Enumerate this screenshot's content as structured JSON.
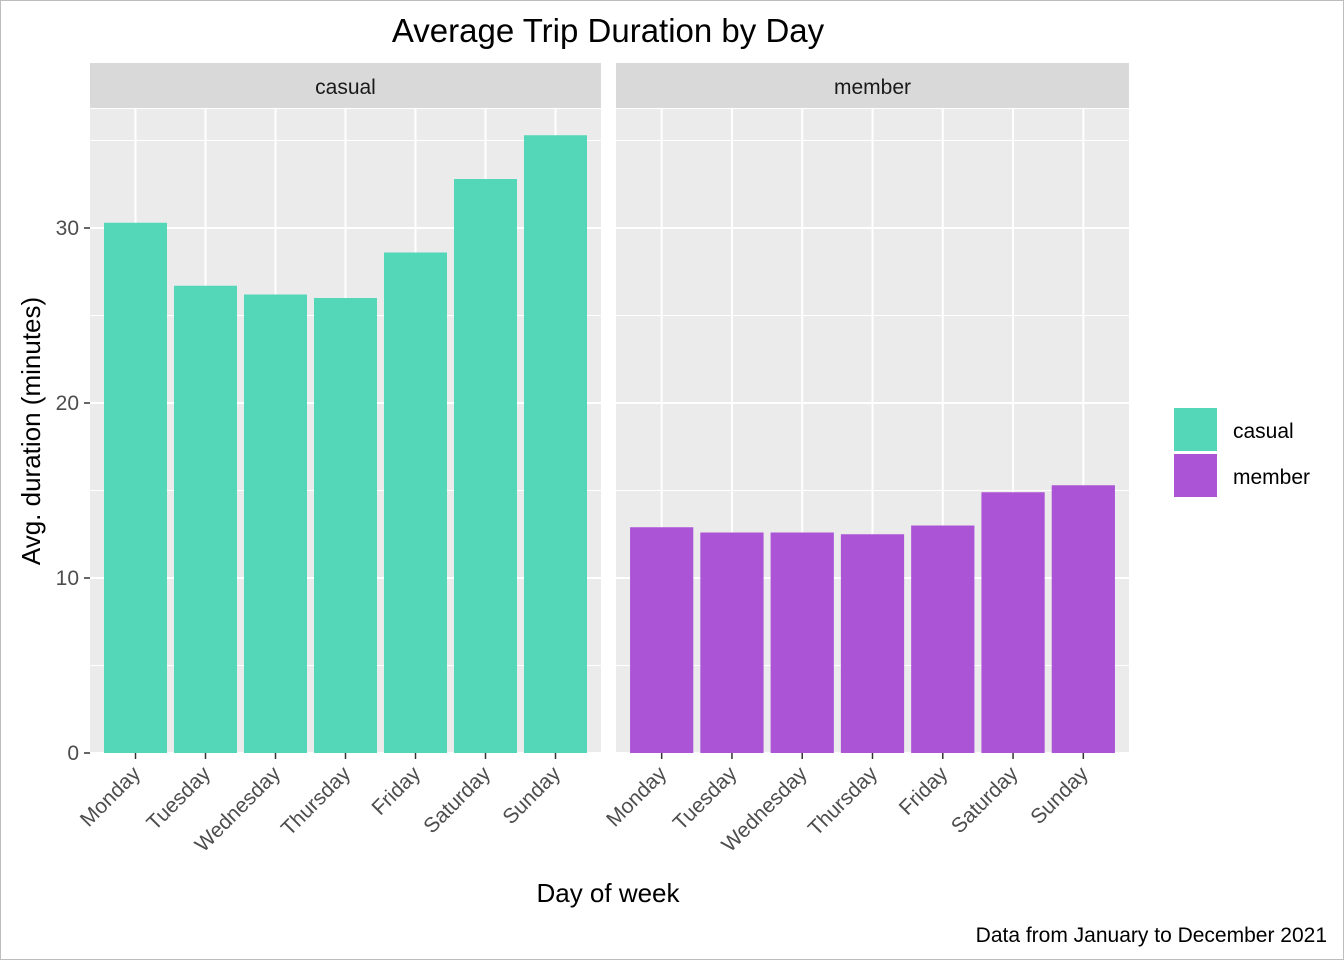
{
  "chart_data": {
    "type": "bar",
    "title": "Average Trip Duration by Day",
    "xlabel": "Day of week",
    "ylabel": "Avg. duration (minutes)",
    "caption": "Data from January to December 2021",
    "ylim": [
      0,
      36.8
    ],
    "yticks": [
      0,
      10,
      20,
      30
    ],
    "categories": [
      "Monday",
      "Tuesday",
      "Wednesday",
      "Thursday",
      "Friday",
      "Saturday",
      "Sunday"
    ],
    "facets": [
      "casual",
      "member"
    ],
    "grid": true,
    "legend_position": "right",
    "series": [
      {
        "name": "casual",
        "color": "#54D6B8",
        "values": [
          30.3,
          26.7,
          26.2,
          26.0,
          28.6,
          32.8,
          35.3
        ]
      },
      {
        "name": "member",
        "color": "#AB54D6",
        "values": [
          12.9,
          12.6,
          12.6,
          12.5,
          13.0,
          14.9,
          15.3
        ]
      }
    ]
  }
}
